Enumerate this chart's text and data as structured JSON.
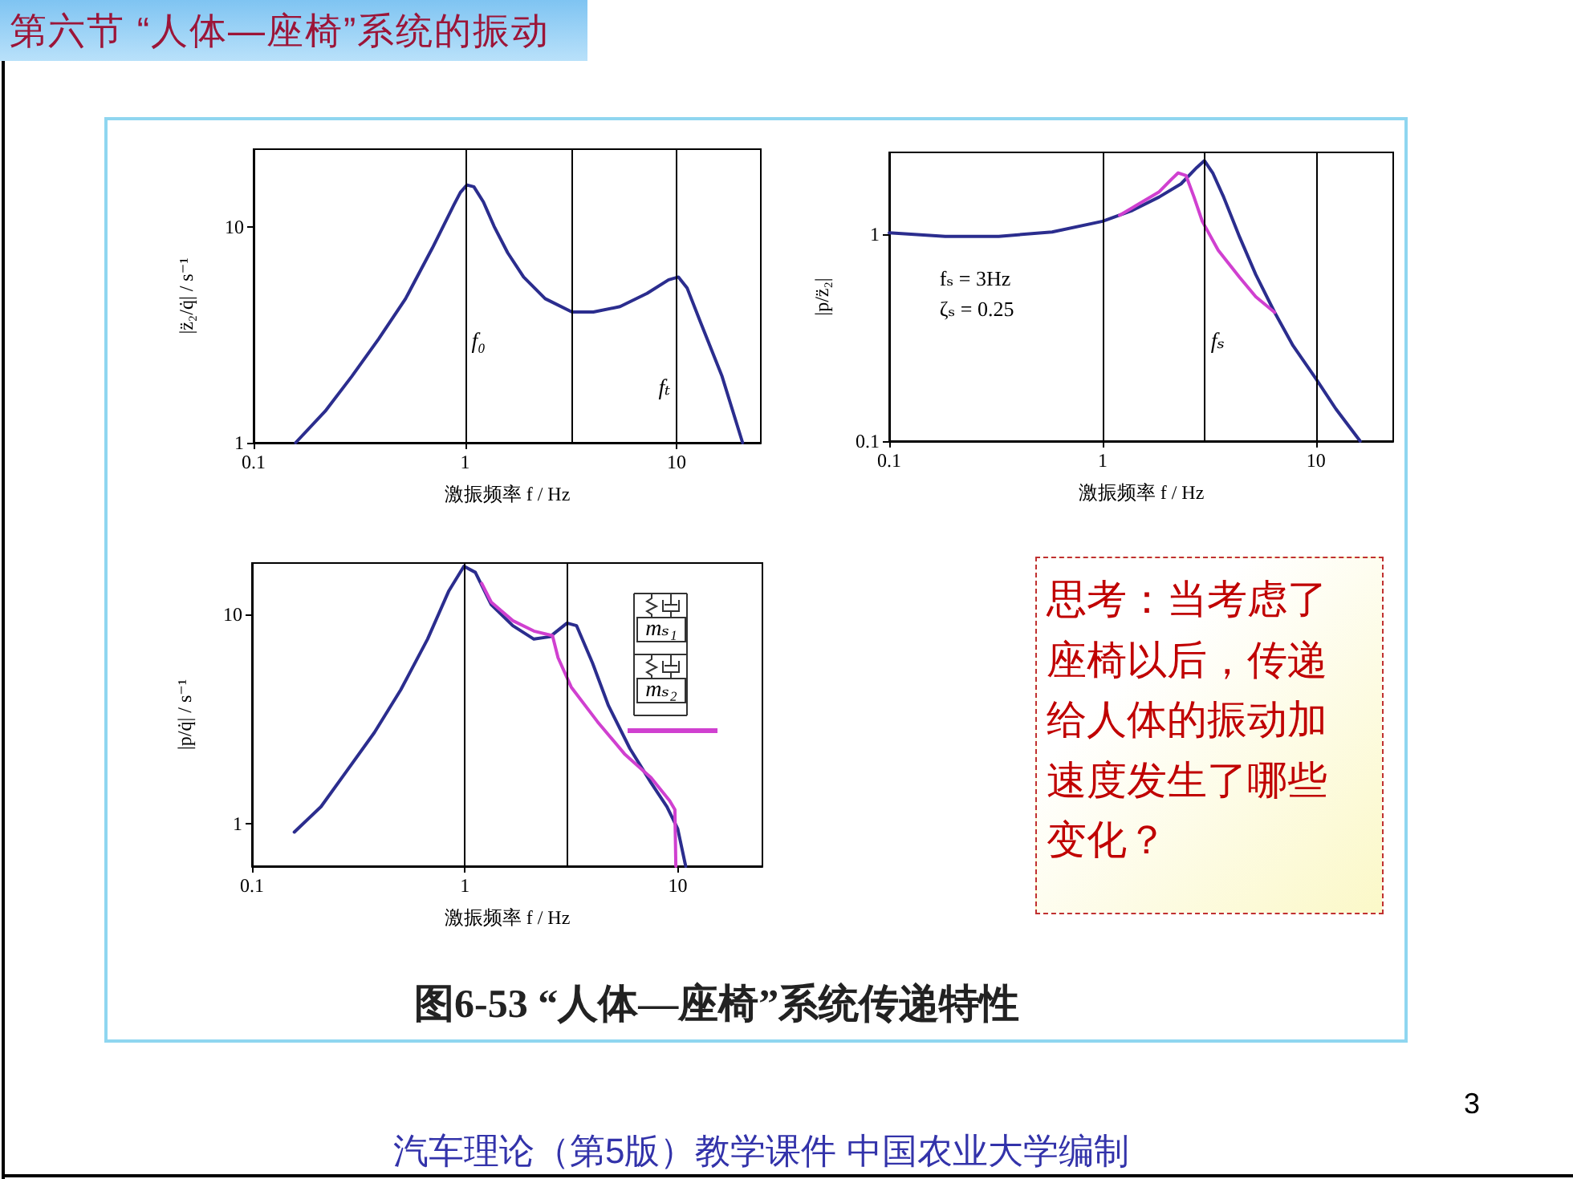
{
  "chart_data": [
    {
      "type": "line",
      "xlabel": "激振频率 f / Hz",
      "ylabel": "|z̈₂/q̇| / s⁻¹",
      "log": "xy",
      "xlim": [
        0.1,
        25
      ],
      "ylim": [
        1,
        23
      ],
      "xticks": [
        0.1,
        1,
        10
      ],
      "yticks": [
        1,
        10
      ],
      "ref_lines": [
        {
          "axis": "x",
          "value": 1,
          "label": "f₀",
          "color": "#000000"
        },
        {
          "axis": "x",
          "value": 3.2,
          "color": "#000000"
        },
        {
          "axis": "x",
          "value": 10,
          "label": "fₜ",
          "color": "#000000"
        }
      ],
      "series": [
        {
          "color": "#2b2d8e",
          "x": [
            0.158,
            0.218,
            0.291,
            0.39,
            0.523,
            0.7,
            0.885,
            0.95,
            1.02,
            1.1,
            1.22,
            1.37,
            1.59,
            1.89,
            2.39,
            3.2,
            4.04,
            5.4,
            7.25,
            9.16,
            10.2,
            11.2,
            13,
            16.4,
            20.5
          ],
          "values": [
            1,
            1.4,
            2.03,
            3.03,
            4.66,
            8,
            12.7,
            14.5,
            15.7,
            15.4,
            13.1,
            10.1,
            7.6,
            5.87,
            4.66,
            4.04,
            4.04,
            4.28,
            4.93,
            5.7,
            5.87,
            5.23,
            3.6,
            2.03,
            1
          ]
        }
      ]
    },
    {
      "type": "line",
      "xlabel": "激振频率 f / Hz",
      "ylabel": "|p/z̈₂|",
      "log": "xy",
      "xlim": [
        0.1,
        23
      ],
      "ylim": [
        0.1,
        2.5
      ],
      "xticks": [
        0.1,
        1,
        10
      ],
      "yticks": [
        0.1,
        1
      ],
      "ref_lines": [
        {
          "axis": "x",
          "value": 1,
          "color": "#000000"
        },
        {
          "axis": "x",
          "value": 3,
          "label": "fₛ",
          "color": "#000000"
        },
        {
          "axis": "x",
          "value": 10,
          "color": "#000000"
        }
      ],
      "annotations": [
        "fₛ = 3Hz",
        "ζₛ = 0.25"
      ],
      "series": [
        {
          "color": "#2b2d8e",
          "x": [
            0.1,
            0.183,
            0.326,
            0.58,
            1,
            1.38,
            1.84,
            2.33,
            2.76,
            3,
            3.28,
            3.69,
            4.39,
            5.22,
            6.4,
            7.8,
            10,
            12.4,
            16.1
          ],
          "values": [
            1.02,
            0.98,
            0.98,
            1.03,
            1.16,
            1.31,
            1.52,
            1.76,
            2.11,
            2.28,
            1.99,
            1.52,
            0.97,
            0.64,
            0.42,
            0.29,
            0.2,
            0.143,
            0.1
          ]
        },
        {
          "color": "#d040d0",
          "x": [
            1.2,
            1.38,
            1.84,
            2.1,
            2.26,
            2.46,
            2.68,
            2.93,
            3.48,
            4.39,
            5.22,
            6.4
          ],
          "values": [
            1.24,
            1.35,
            1.61,
            1.85,
            1.99,
            1.93,
            1.52,
            1.16,
            0.84,
            0.62,
            0.5,
            0.42
          ]
        }
      ]
    },
    {
      "type": "line",
      "xlabel": "激振频率 f / Hz",
      "ylabel": "|p/q̇| / s⁻¹",
      "log": "xy",
      "xlim": [
        0.1,
        25
      ],
      "ylim": [
        0.63,
        17.5
      ],
      "xticks": [
        0.1,
        1,
        10
      ],
      "yticks": [
        1,
        10
      ],
      "ref_lines": [
        {
          "axis": "x",
          "value": 1,
          "color": "#000000"
        },
        {
          "axis": "x",
          "value": 3,
          "color": "#000000"
        }
      ],
      "annotations": [
        "mₛ₁",
        "mₛ₂"
      ],
      "series": [
        {
          "color": "#2b2d8e",
          "x": [
            0.158,
            0.211,
            0.282,
            0.376,
            0.5,
            0.668,
            0.841,
            0.99,
            1.12,
            1.33,
            1.68,
            2.11,
            2.51,
            3.02,
            3.35,
            3.98,
            4.73,
            5.96,
            7.5,
            8.9,
            10,
            10.9
          ],
          "values": [
            0.916,
            1.21,
            1.82,
            2.73,
            4.36,
            7.6,
            12.9,
            16.9,
            15.8,
            11.1,
            8.8,
            7.6,
            7.8,
            9.06,
            8.8,
            5.84,
            3.66,
            2.29,
            1.57,
            1.21,
            0.95,
            0.63
          ]
        },
        {
          "color": "#d040d0",
          "x": [
            1.2,
            1.33,
            1.68,
            2.11,
            2.58,
            2.74,
            3.16,
            4.2,
            5.62,
            7.5,
            9.17,
            9.7,
            9.8
          ],
          "values": [
            14,
            11.4,
            9.3,
            8.3,
            7.9,
            6.2,
            4.49,
            3.07,
            2.16,
            1.66,
            1.29,
            1.17,
            0.63
          ]
        }
      ]
    },
    {
      "type": "other",
      "title": "第六节 “人体—座椅”系统的振动",
      "annotations": [
        "思考：当考虑了座椅以后，传递给人体的振动加速度发生了哪些变化？",
        "图6-53 “人体—座椅”系统传递特性",
        "3",
        "汽车理论（第5版）教学课件 中国农业大学编制"
      ]
    }
  ]
}
